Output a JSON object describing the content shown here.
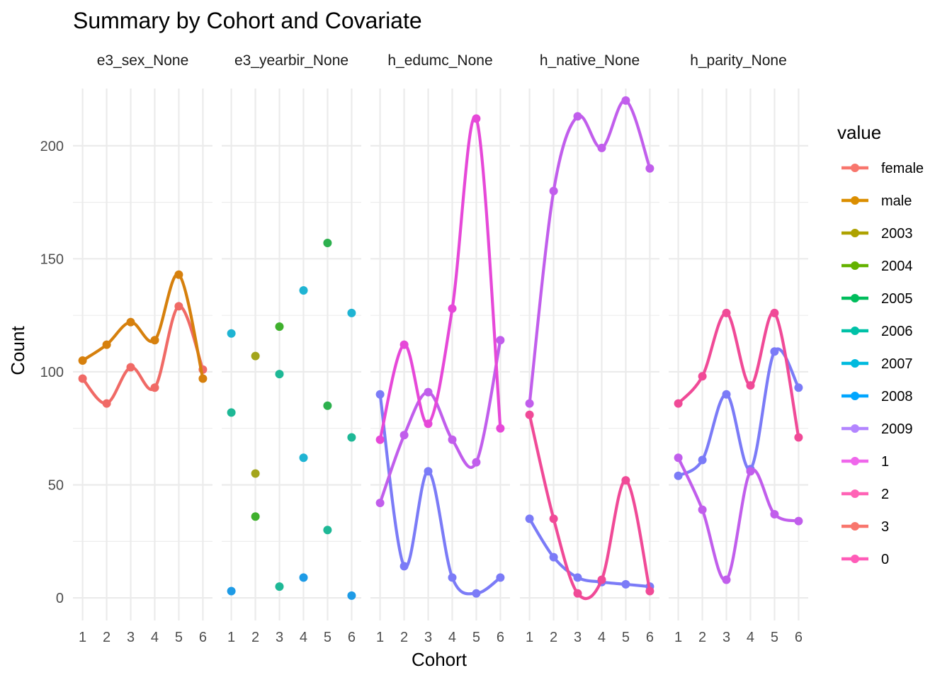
{
  "chart_data": {
    "type": "line",
    "title": "Summary by Cohort and Covariate",
    "xlabel": "Cohort",
    "ylabel": "Count",
    "x_ticks": [
      "1",
      "2",
      "3",
      "4",
      "5",
      "6"
    ],
    "y_ticks": [
      "0",
      "50",
      "100",
      "150",
      "200"
    ],
    "ylim": [
      -10,
      230
    ],
    "xlim": [
      0.6,
      6.4
    ],
    "grid": true,
    "legend": {
      "title": "value",
      "position": "right",
      "entries": [
        {
          "label": "female",
          "color": "#F8766D"
        },
        {
          "label": "male",
          "color": "#DB8E00"
        },
        {
          "label": "2003",
          "color": "#AEA200"
        },
        {
          "label": "2004",
          "color": "#64B200"
        },
        {
          "label": "2005",
          "color": "#00BD5C"
        },
        {
          "label": "2006",
          "color": "#00C1A7"
        },
        {
          "label": "2007",
          "color": "#00BADE"
        },
        {
          "label": "2008",
          "color": "#00A6FF"
        },
        {
          "label": "2009",
          "color": "#B385FF"
        },
        {
          "label": "1",
          "color": "#EF67EB"
        },
        {
          "label": "2",
          "color": "#FF63B6"
        },
        {
          "label": "3",
          "color": "#F8766D"
        },
        {
          "label": "0",
          "color": "#FF5CB8"
        }
      ]
    },
    "facets": [
      {
        "name": "e3_sex_None",
        "series": [
          {
            "name": "female",
            "color": "#F06A66",
            "lines": true,
            "x": [
              1,
              2,
              3,
              4,
              5,
              6
            ],
            "values": [
              97,
              86,
              102,
              93,
              129,
              101
            ]
          },
          {
            "name": "male",
            "color": "#D6800D",
            "lines": true,
            "x": [
              1,
              2,
              3,
              4,
              5,
              6
            ],
            "values": [
              105,
              112,
              122,
              114,
              143,
              97
            ]
          }
        ]
      },
      {
        "name": "e3_yearbir_None",
        "series": [
          {
            "name": "2003",
            "color": "#A3A51B",
            "lines": false,
            "x": [
              2
            ],
            "values": [
              55
            ]
          },
          {
            "name": "2004",
            "color": "#A3A51B",
            "lines": false,
            "x": [
              2
            ],
            "values": [
              107
            ]
          },
          {
            "name": "2005",
            "color": "#3FB02D",
            "lines": false,
            "x": [
              2,
              3
            ],
            "values": [
              36,
              120
            ]
          },
          {
            "name": "2006",
            "color": "#2DB04E",
            "lines": false,
            "x": [
              5,
              5
            ],
            "values": [
              157,
              85
            ]
          },
          {
            "name": "2007",
            "color": "#1EB896",
            "lines": false,
            "x": [
              1,
              3,
              3,
              5,
              6
            ],
            "values": [
              82,
              99,
              5,
              30,
              71
            ]
          },
          {
            "name": "2008",
            "color": "#1FB4D3",
            "lines": false,
            "x": [
              1,
              4,
              4,
              6
            ],
            "values": [
              117,
              136,
              62,
              126
            ]
          },
          {
            "name": "2009",
            "color": "#1E9BE6",
            "lines": false,
            "x": [
              1,
              4,
              6
            ],
            "values": [
              3,
              9,
              1
            ]
          }
        ]
      },
      {
        "name": "h_edumc_None",
        "series": [
          {
            "name": "1",
            "color": "#7B7BF7",
            "lines": true,
            "x": [
              1,
              2,
              3,
              4,
              5,
              6
            ],
            "values": [
              90,
              14,
              56,
              9,
              2,
              9
            ]
          },
          {
            "name": "2",
            "color": "#C15EEC",
            "lines": true,
            "x": [
              1,
              2,
              3,
              4,
              5,
              6
            ],
            "values": [
              42,
              72,
              91,
              70,
              60,
              114
            ]
          },
          {
            "name": "3",
            "color": "#E648D8",
            "lines": true,
            "x": [
              1,
              2,
              3,
              4,
              5,
              6
            ],
            "values": [
              70,
              112,
              77,
              128,
              212,
              75
            ]
          }
        ]
      },
      {
        "name": "h_native_None",
        "series": [
          {
            "name": "1",
            "color": "#7B7BF7",
            "lines": true,
            "x": [
              1,
              2,
              3,
              4,
              5,
              6
            ],
            "values": [
              35,
              18,
              9,
              7,
              6,
              5
            ]
          },
          {
            "name": "2",
            "color": "#C15EEC",
            "lines": true,
            "x": [
              1,
              2,
              3,
              4,
              5,
              6
            ],
            "values": [
              86,
              180,
              213,
              199,
              220,
              190
            ]
          },
          {
            "name": "0",
            "color": "#F04A97",
            "lines": true,
            "x": [
              1,
              2,
              3,
              4,
              5,
              6
            ],
            "values": [
              81,
              35,
              2,
              8,
              52,
              3
            ]
          }
        ]
      },
      {
        "name": "h_parity_None",
        "series": [
          {
            "name": "1",
            "color": "#7B7BF7",
            "lines": true,
            "x": [
              1,
              2,
              3,
              4,
              5,
              6
            ],
            "values": [
              54,
              61,
              90,
              57,
              109,
              93
            ]
          },
          {
            "name": "2",
            "color": "#C15EEC",
            "lines": true,
            "x": [
              1,
              2,
              3,
              4,
              5,
              6
            ],
            "values": [
              62,
              39,
              8,
              56,
              37,
              34
            ]
          },
          {
            "name": "0",
            "color": "#F04A97",
            "lines": true,
            "x": [
              1,
              2,
              3,
              4,
              5,
              6
            ],
            "values": [
              86,
              98,
              126,
              94,
              126,
              71
            ]
          }
        ]
      }
    ]
  }
}
